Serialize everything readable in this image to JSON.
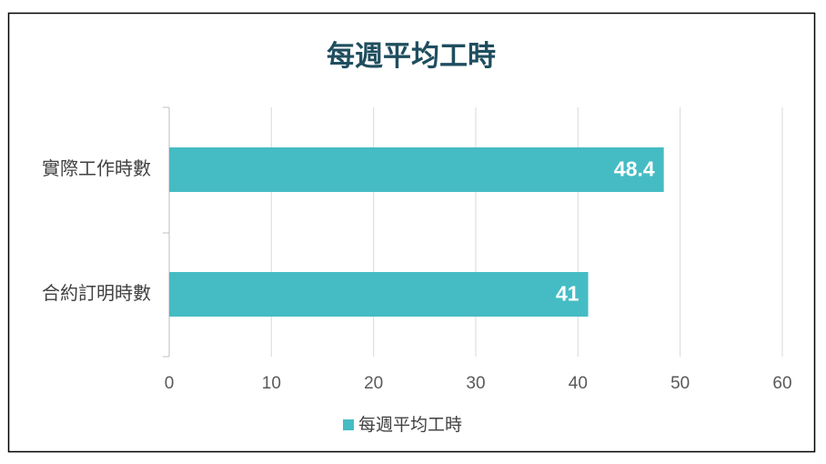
{
  "chart_data": {
    "type": "bar",
    "orientation": "horizontal",
    "title": "每週平均工時",
    "categories": [
      "實際工作時數",
      "合約訂明時數"
    ],
    "series": [
      {
        "name": "每週平均工時",
        "color": "#45bcc4",
        "values": [
          48.4,
          41
        ]
      }
    ],
    "xlim": [
      0,
      60
    ],
    "xticks": [
      0,
      10,
      20,
      30,
      40,
      50,
      60
    ],
    "grid": true,
    "legend": "bottom"
  }
}
